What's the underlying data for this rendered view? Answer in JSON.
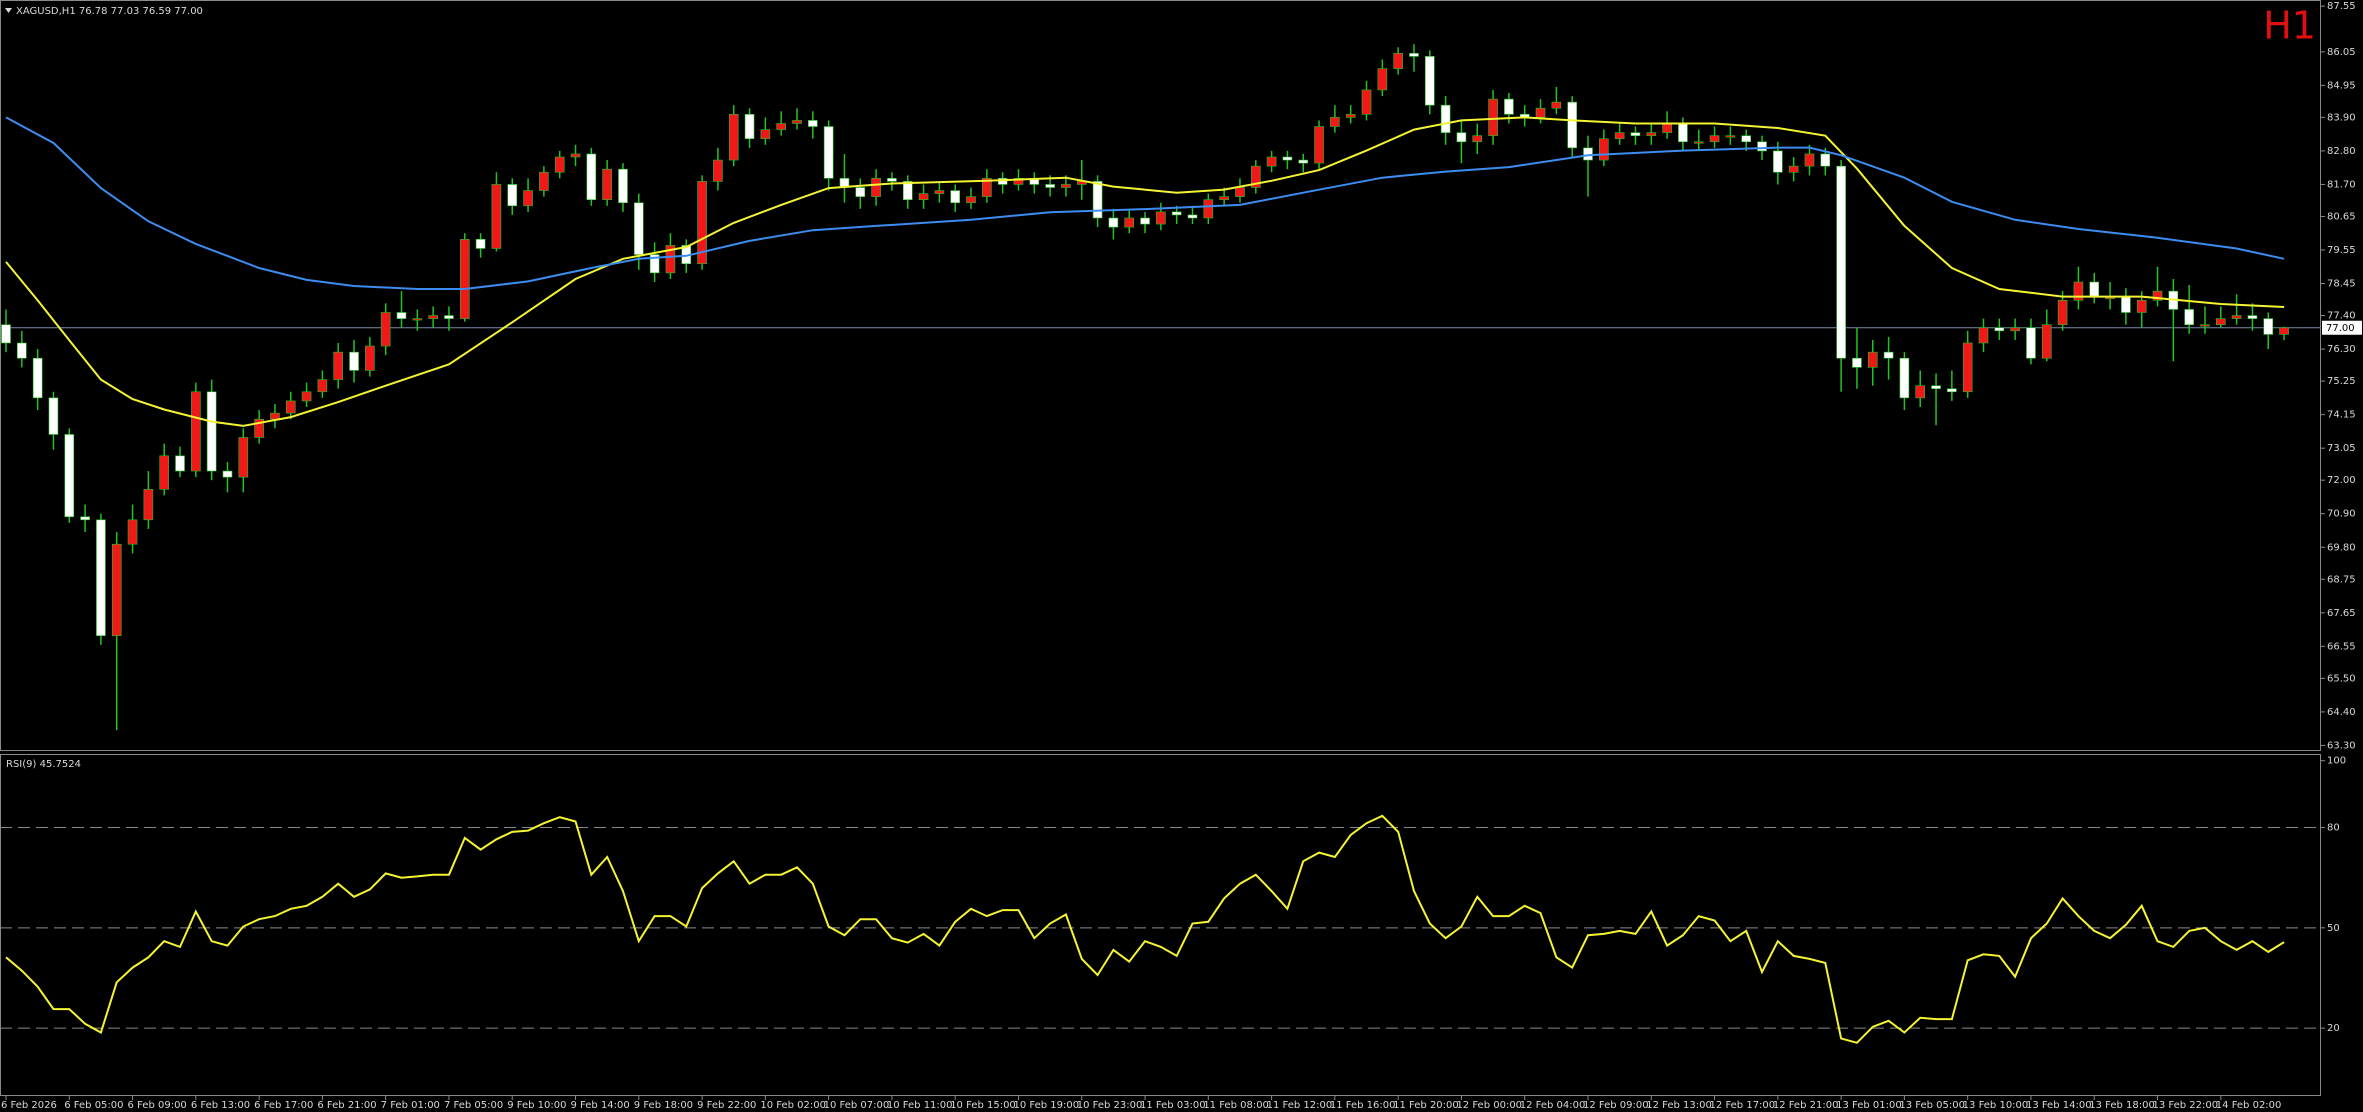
{
  "chart_data": [
    {
      "type": "candlestick",
      "title": "XAGUSD,H1  76.78 77.03 76.59 77.00",
      "timeframe_label": "H1",
      "open": [
        77.1,
        76.5,
        76.0,
        74.7,
        73.5,
        70.8,
        70.7,
        66.9,
        69.9,
        70.7,
        71.7,
        72.8,
        72.3,
        74.9,
        72.3,
        72.1,
        73.4,
        74.0,
        74.2,
        74.6,
        74.9,
        75.3,
        76.2,
        75.6,
        76.4,
        77.5,
        77.3,
        77.3,
        77.4,
        77.3,
        79.9,
        79.6,
        81.7,
        81.0,
        81.5,
        82.1,
        82.6,
        82.7,
        81.2,
        82.2,
        81.1,
        79.4,
        78.8,
        79.7,
        79.1,
        81.8,
        82.5,
        84.0,
        83.2,
        83.5,
        83.7,
        83.8,
        83.6,
        81.9,
        81.6,
        81.3,
        81.9,
        81.8,
        81.2,
        81.4,
        81.5,
        81.1,
        81.3,
        81.9,
        81.7,
        81.9,
        81.7,
        81.6,
        81.7,
        81.8,
        80.6,
        80.3,
        80.6,
        80.4,
        80.8,
        80.7,
        80.6,
        81.2,
        81.3,
        81.6,
        82.3,
        82.6,
        82.5,
        82.4,
        83.6,
        83.9,
        84.0,
        84.8,
        85.5,
        86.0,
        85.9,
        84.3,
        83.4,
        83.1,
        83.3,
        84.5,
        84.0,
        83.9,
        84.2,
        84.4,
        82.9,
        82.5,
        83.2,
        83.4,
        83.3,
        83.4,
        83.7,
        83.1,
        83.1,
        83.3,
        83.3,
        83.1,
        82.8,
        82.1,
        82.3,
        82.7,
        82.3,
        76.0,
        75.7,
        76.2,
        76.0,
        74.7,
        75.1,
        75.0,
        74.9,
        76.5,
        77.0,
        76.9,
        77.0,
        76.0,
        77.1,
        77.9,
        78.5,
        78.0,
        78.0,
        77.5,
        77.9,
        78.2,
        77.6,
        77.1,
        77.1,
        77.3,
        77.4,
        77.3,
        76.78
      ],
      "high": [
        77.6,
        76.9,
        76.3,
        74.9,
        73.7,
        71.2,
        70.9,
        70.3,
        71.2,
        72.3,
        73.2,
        73.1,
        75.2,
        75.3,
        72.6,
        73.7,
        74.3,
        74.5,
        74.9,
        75.2,
        75.6,
        76.5,
        76.6,
        76.7,
        77.8,
        78.2,
        77.6,
        77.7,
        77.7,
        80.1,
        80.1,
        82.1,
        81.9,
        81.9,
        82.3,
        82.8,
        83.0,
        82.9,
        82.5,
        82.4,
        81.4,
        79.8,
        80.1,
        79.9,
        82.0,
        82.9,
        84.3,
        84.2,
        83.9,
        84.1,
        84.2,
        84.1,
        83.8,
        82.7,
        81.9,
        82.2,
        82.1,
        82.0,
        81.7,
        81.8,
        81.7,
        81.6,
        82.2,
        82.1,
        82.2,
        82.1,
        82.0,
        82.0,
        82.5,
        82.0,
        80.9,
        80.9,
        80.8,
        81.1,
        81.0,
        81.0,
        81.4,
        81.6,
        81.9,
        82.5,
        82.8,
        82.8,
        82.7,
        83.8,
        84.3,
        84.3,
        85.1,
        85.8,
        86.2,
        86.3,
        86.1,
        84.6,
        83.8,
        83.7,
        84.8,
        84.7,
        84.3,
        84.5,
        84.9,
        84.6,
        83.3,
        83.5,
        83.7,
        83.6,
        83.7,
        84.1,
        83.9,
        83.5,
        83.6,
        83.6,
        83.5,
        83.3,
        83.1,
        82.6,
        83.0,
        82.9,
        82.5,
        77.0,
        76.6,
        76.7,
        76.2,
        75.6,
        75.5,
        75.6,
        76.9,
        77.3,
        77.3,
        77.3,
        77.3,
        77.6,
        78.2,
        79.0,
        78.8,
        78.5,
        78.3,
        78.2,
        79.0,
        78.6,
        78.4,
        77.7,
        77.7,
        78.1,
        77.8,
        77.5,
        77.03
      ],
      "low": [
        76.2,
        75.7,
        74.3,
        73.0,
        70.6,
        70.3,
        66.6,
        63.8,
        69.6,
        70.4,
        71.5,
        72.1,
        72.1,
        72.0,
        71.6,
        71.6,
        73.2,
        73.7,
        74.0,
        74.4,
        74.7,
        75.0,
        75.2,
        75.4,
        76.1,
        77.0,
        76.9,
        77.0,
        76.9,
        77.2,
        79.3,
        79.5,
        80.7,
        80.8,
        81.3,
        81.9,
        82.3,
        81.0,
        81.0,
        80.8,
        78.9,
        78.5,
        78.6,
        78.8,
        78.9,
        81.5,
        82.3,
        82.9,
        83.0,
        83.3,
        83.5,
        83.2,
        81.5,
        81.1,
        80.9,
        81.0,
        81.5,
        80.9,
        80.9,
        81.1,
        80.8,
        80.9,
        81.1,
        81.4,
        81.5,
        81.4,
        81.3,
        81.3,
        81.2,
        80.3,
        79.9,
        80.1,
        80.1,
        80.2,
        80.4,
        80.4,
        80.4,
        81.0,
        81.1,
        81.4,
        82.1,
        82.2,
        82.1,
        82.2,
        83.4,
        83.7,
        83.8,
        84.6,
        85.3,
        85.4,
        84.0,
        83.0,
        82.4,
        82.7,
        83.0,
        83.7,
        83.6,
        83.7,
        84.0,
        82.6,
        81.3,
        82.3,
        83.0,
        83.0,
        83.0,
        83.2,
        82.8,
        82.8,
        82.9,
        83.0,
        82.8,
        82.5,
        81.7,
        81.8,
        82.0,
        82.0,
        74.9,
        75.0,
        75.1,
        75.3,
        74.3,
        74.4,
        73.8,
        74.6,
        74.7,
        76.2,
        76.6,
        76.6,
        75.8,
        75.9,
        76.9,
        77.6,
        77.8,
        77.6,
        77.1,
        77.0,
        77.7,
        75.9,
        76.8,
        76.8,
        77.0,
        77.1,
        76.9,
        76.3,
        76.59
      ],
      "close": [
        76.5,
        76.0,
        74.7,
        73.5,
        70.8,
        70.7,
        66.9,
        69.9,
        70.7,
        71.7,
        72.8,
        72.3,
        74.9,
        72.3,
        72.1,
        73.4,
        74.0,
        74.2,
        74.6,
        74.9,
        75.3,
        76.2,
        75.6,
        76.4,
        77.5,
        77.3,
        77.3,
        77.4,
        77.3,
        79.9,
        79.6,
        81.7,
        81.0,
        81.5,
        82.1,
        82.6,
        82.7,
        81.2,
        82.2,
        81.1,
        79.4,
        78.8,
        79.7,
        79.1,
        81.8,
        82.5,
        84.0,
        83.2,
        83.5,
        83.7,
        83.8,
        83.6,
        81.9,
        81.6,
        81.3,
        81.9,
        81.8,
        81.2,
        81.4,
        81.5,
        81.1,
        81.3,
        81.9,
        81.7,
        81.9,
        81.7,
        81.6,
        81.7,
        81.8,
        80.6,
        80.3,
        80.6,
        80.4,
        80.8,
        80.7,
        80.6,
        81.2,
        81.3,
        81.6,
        82.3,
        82.6,
        82.5,
        82.4,
        83.6,
        83.9,
        84.0,
        84.8,
        85.5,
        86.0,
        85.9,
        84.3,
        83.4,
        83.1,
        83.3,
        84.5,
        84.0,
        83.9,
        84.2,
        84.4,
        82.9,
        82.5,
        83.2,
        83.4,
        83.3,
        83.4,
        83.7,
        83.1,
        83.1,
        83.3,
        83.3,
        83.1,
        82.8,
        82.1,
        82.3,
        82.7,
        82.3,
        76.0,
        75.7,
        76.2,
        76.0,
        74.7,
        75.1,
        75.0,
        74.9,
        76.5,
        77.0,
        76.9,
        77.0,
        76.0,
        77.1,
        77.9,
        78.5,
        78.0,
        78.0,
        77.5,
        77.9,
        78.2,
        77.6,
        77.1,
        77.1,
        77.3,
        77.4,
        77.3,
        76.78,
        77.0
      ],
      "up_color": "#f01818",
      "down_color": "#ffffff",
      "wick_color": "#22c322",
      "lines": [
        {
          "color": "#f4f433",
          "x": [
            0,
            2,
            4,
            6,
            8,
            10,
            13,
            15,
            18,
            21,
            24,
            28,
            32,
            36,
            39,
            43,
            46,
            49,
            52,
            56,
            62,
            67,
            70,
            74,
            77,
            80,
            83,
            86,
            89,
            92,
            96,
            99,
            103,
            108,
            112,
            115,
            117,
            120,
            123,
            126,
            130,
            135,
            140,
            144
          ],
          "values": [
            79.16,
            77.9,
            76.59,
            75.3,
            74.66,
            74.32,
            73.92,
            73.78,
            74.07,
            74.56,
            75.1,
            75.8,
            77.18,
            78.6,
            79.26,
            79.65,
            80.44,
            81.03,
            81.58,
            81.73,
            81.82,
            81.92,
            81.63,
            81.43,
            81.53,
            81.82,
            82.17,
            82.81,
            83.5,
            83.8,
            83.9,
            83.8,
            83.7,
            83.7,
            83.55,
            83.3,
            82.22,
            80.34,
            78.96,
            78.27,
            78.02,
            78.02,
            77.78,
            77.68
          ]
        },
        {
          "color": "#3d8cf0",
          "x": [
            0,
            3,
            6,
            9,
            12,
            16,
            19,
            22,
            26,
            29,
            33,
            37,
            40,
            43,
            47,
            51,
            55,
            61,
            66,
            72,
            78,
            82,
            87,
            91,
            95,
            100,
            106,
            112,
            114,
            116,
            120,
            123,
            127,
            131,
            136,
            141,
            144
          ],
          "values": [
            83.9,
            83.06,
            81.58,
            80.49,
            79.75,
            78.96,
            78.57,
            78.37,
            78.27,
            78.27,
            78.52,
            78.96,
            79.26,
            79.36,
            79.85,
            80.2,
            80.34,
            80.54,
            80.79,
            80.89,
            81.03,
            81.43,
            81.92,
            82.12,
            82.27,
            82.66,
            82.81,
            82.91,
            82.91,
            82.66,
            81.92,
            81.13,
            80.54,
            80.24,
            79.95,
            79.6,
            79.26
          ]
        }
      ],
      "bid_line": {
        "value": 77.0,
        "label": "77.00"
      },
      "ylim": [
        63.15,
        87.75
      ],
      "yticks": [
        87.55,
        86.05,
        84.95,
        {
          "value": 83.9,
          "label": "83.90"
        },
        {
          "value": 82.8,
          "label": "82.80"
        },
        {
          "value": 81.7,
          "label": "81.70"
        },
        80.65,
        79.55,
        78.45,
        {
          "value": 77.4,
          "label": "77.40"
        },
        {
          "value": 76.3,
          "label": "76.30"
        },
        75.25,
        74.15,
        73.05,
        {
          "value": 72,
          "label": "72.00"
        },
        {
          "value": 70.9,
          "label": "70.90"
        },
        {
          "value": 69.8,
          "label": "69.80"
        },
        68.75,
        67.65,
        66.55,
        {
          "value": 65.5,
          "label": "65.50"
        },
        {
          "value": 64.4,
          "label": "64.40"
        },
        {
          "value": 63.3,
          "label": "63.30"
        }
      ],
      "xticks": [
        {
          "value": 0,
          "label": "6 Feb 2026"
        },
        {
          "value": 4,
          "label": "6 Feb 05:00"
        },
        {
          "value": 8,
          "label": "6 Feb 09:00"
        },
        {
          "value": 12,
          "label": "6 Feb 13:00"
        },
        {
          "value": 16,
          "label": "6 Feb 17:00"
        },
        {
          "value": 20,
          "label": "6 Feb 21:00"
        },
        {
          "value": 24,
          "label": "7 Feb 01:00"
        },
        {
          "value": 28,
          "label": "7 Feb 05:00"
        },
        {
          "value": 32,
          "label": "9 Feb 10:00"
        },
        {
          "value": 36,
          "label": "9 Feb 14:00"
        },
        {
          "value": 40,
          "label": "9 Feb 18:00"
        },
        {
          "value": 44,
          "label": "9 Feb 22:00"
        },
        {
          "value": 48,
          "label": "10 Feb 02:00"
        },
        {
          "value": 52,
          "label": "10 Feb 07:00"
        },
        {
          "value": 56,
          "label": "10 Feb 11:00"
        },
        {
          "value": 60,
          "label": "10 Feb 15:00"
        },
        {
          "value": 64,
          "label": "10 Feb 19:00"
        },
        {
          "value": 68,
          "label": "10 Feb 23:00"
        },
        {
          "value": 72,
          "label": "11 Feb 03:00"
        },
        {
          "value": 76,
          "label": "11 Feb 08:00"
        },
        {
          "value": 80,
          "label": "11 Feb 12:00"
        },
        {
          "value": 84,
          "label": "11 Feb 16:00"
        },
        {
          "value": 88,
          "label": "11 Feb 20:00"
        },
        {
          "value": 92,
          "label": "12 Feb 00:00"
        },
        {
          "value": 96,
          "label": "12 Feb 04:00"
        },
        {
          "value": 100,
          "label": "12 Feb 09:00"
        },
        {
          "value": 104,
          "label": "12 Feb 13:00"
        },
        {
          "value": 108,
          "label": "12 Feb 17:00"
        },
        {
          "value": 112,
          "label": "12 Feb 21:00"
        },
        {
          "value": 116,
          "label": "13 Feb 01:00"
        },
        {
          "value": 120,
          "label": "13 Feb 05:00"
        },
        {
          "value": 124,
          "label": "13 Feb 10:00"
        },
        {
          "value": 128,
          "label": "13 Feb 14:00"
        },
        {
          "value": 132,
          "label": "13 Feb 18:00"
        },
        {
          "value": 136,
          "label": "13 Feb 22:00"
        },
        {
          "value": 140,
          "label": "14 Feb 02:00"
        }
      ]
    },
    {
      "type": "line",
      "title": "RSI(9) 45.7524",
      "color": "#f4f433",
      "values": [
        41.2,
        37.2,
        32.4,
        25.7,
        25.7,
        21.3,
        18.7,
        33.7,
        38.1,
        41.2,
        46.0,
        44.3,
        54.9,
        46.0,
        44.7,
        50.4,
        52.6,
        53.5,
        55.7,
        56.6,
        59.3,
        63.2,
        59.3,
        61.5,
        66.3,
        65.0,
        65.4,
        65.9,
        65.9,
        76.9,
        73.4,
        76.5,
        78.7,
        79.1,
        81.3,
        83.1,
        81.8,
        65.9,
        71.2,
        61.0,
        46.0,
        53.5,
        53.5,
        50.4,
        61.9,
        66.3,
        69.9,
        63.2,
        65.9,
        65.9,
        68.1,
        63.2,
        50.4,
        47.8,
        52.6,
        52.6,
        46.9,
        45.6,
        48.2,
        44.7,
        51.8,
        55.7,
        53.5,
        55.3,
        55.3,
        46.9,
        51.3,
        54.0,
        40.7,
        35.9,
        43.4,
        39.9,
        46.0,
        44.3,
        41.6,
        51.3,
        51.8,
        58.8,
        63.2,
        65.9,
        61.0,
        55.7,
        69.9,
        72.5,
        71.2,
        77.8,
        81.3,
        83.5,
        78.7,
        61.0,
        51.3,
        46.9,
        50.4,
        59.3,
        53.5,
        53.5,
        56.6,
        54.4,
        41.2,
        38.1,
        47.8,
        48.2,
        49.1,
        48.2,
        54.9,
        44.7,
        47.8,
        53.5,
        52.2,
        46.0,
        49.1,
        36.8,
        46.0,
        41.6,
        40.7,
        39.5,
        16.9,
        15.6,
        20.4,
        22.2,
        18.7,
        23.1,
        22.7,
        22.7,
        40.3,
        42.1,
        41.6,
        35.4,
        46.9,
        51.3,
        58.8,
        53.5,
        49.1,
        46.9,
        50.9,
        56.6,
        46.0,
        44.3,
        49.1,
        50.0,
        46.0,
        43.4,
        46.0,
        42.8,
        45.75
      ],
      "ylim": [
        0,
        102
      ],
      "yticks": [
        20,
        50,
        80,
        100
      ],
      "levels": [
        20,
        50,
        80
      ]
    }
  ]
}
